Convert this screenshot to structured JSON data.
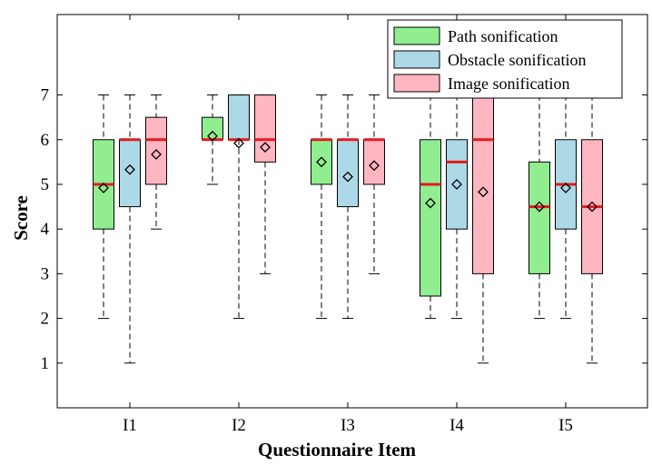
{
  "chart_data": {
    "type": "boxplot",
    "xlabel": "Questionnaire Item",
    "ylabel": "Score",
    "ylim": [
      0,
      8.8
    ],
    "yticks": [
      1,
      2,
      3,
      4,
      5,
      6,
      7
    ],
    "categories": [
      "I1",
      "I2",
      "I3",
      "I4",
      "I5"
    ],
    "legend_position": "top-right",
    "grid": false,
    "median_color": "#e41a1c",
    "series": [
      {
        "name": "Path sonification",
        "color": "#90ee90",
        "boxes": [
          {
            "whisker_low": 2,
            "q1": 4,
            "median": 5,
            "q3": 6,
            "whisker_high": 7,
            "mean": 4.92
          },
          {
            "whisker_low": 5,
            "q1": 6,
            "median": 6,
            "q3": 6.5,
            "whisker_high": 7,
            "mean": 6.08
          },
          {
            "whisker_low": 2,
            "q1": 5,
            "median": 6,
            "q3": 6,
            "whisker_high": 7,
            "mean": 5.5
          },
          {
            "whisker_low": 2,
            "q1": 2.5,
            "median": 5,
            "q3": 6,
            "whisker_high": 7,
            "mean": 4.58
          },
          {
            "whisker_low": 2,
            "q1": 3,
            "median": 4.5,
            "q3": 5.5,
            "whisker_high": 7,
            "mean": 4.5
          }
        ]
      },
      {
        "name": "Obstacle sonification",
        "color": "#add8e6",
        "boxes": [
          {
            "whisker_low": 1,
            "q1": 4.5,
            "median": 6,
            "q3": 6,
            "whisker_high": 7,
            "mean": 5.33
          },
          {
            "whisker_low": 2,
            "q1": 6,
            "median": 6,
            "q3": 7,
            "whisker_high": 7,
            "mean": 5.92
          },
          {
            "whisker_low": 2,
            "q1": 4.5,
            "median": 6,
            "q3": 6,
            "whisker_high": 7,
            "mean": 5.17
          },
          {
            "whisker_low": 2,
            "q1": 4,
            "median": 5.5,
            "q3": 6,
            "whisker_high": 7,
            "mean": 5.0
          },
          {
            "whisker_low": 2,
            "q1": 4,
            "median": 5,
            "q3": 6,
            "whisker_high": 7,
            "mean": 4.92
          }
        ]
      },
      {
        "name": "Image sonification",
        "color": "#ffb6c1",
        "boxes": [
          {
            "whisker_low": 4,
            "q1": 5,
            "median": 6,
            "q3": 6.5,
            "whisker_high": 7,
            "mean": 5.67
          },
          {
            "whisker_low": 3,
            "q1": 5.5,
            "median": 6,
            "q3": 7,
            "whisker_high": 7,
            "mean": 5.83
          },
          {
            "whisker_low": 3,
            "q1": 5,
            "median": 6,
            "q3": 6,
            "whisker_high": 7,
            "mean": 5.42
          },
          {
            "whisker_low": 1,
            "q1": 3,
            "median": 6,
            "q3": 7,
            "whisker_high": 7,
            "mean": 4.83
          },
          {
            "whisker_low": 1,
            "q1": 3,
            "median": 4.5,
            "q3": 6,
            "whisker_high": 7,
            "mean": 4.5
          }
        ]
      }
    ]
  }
}
